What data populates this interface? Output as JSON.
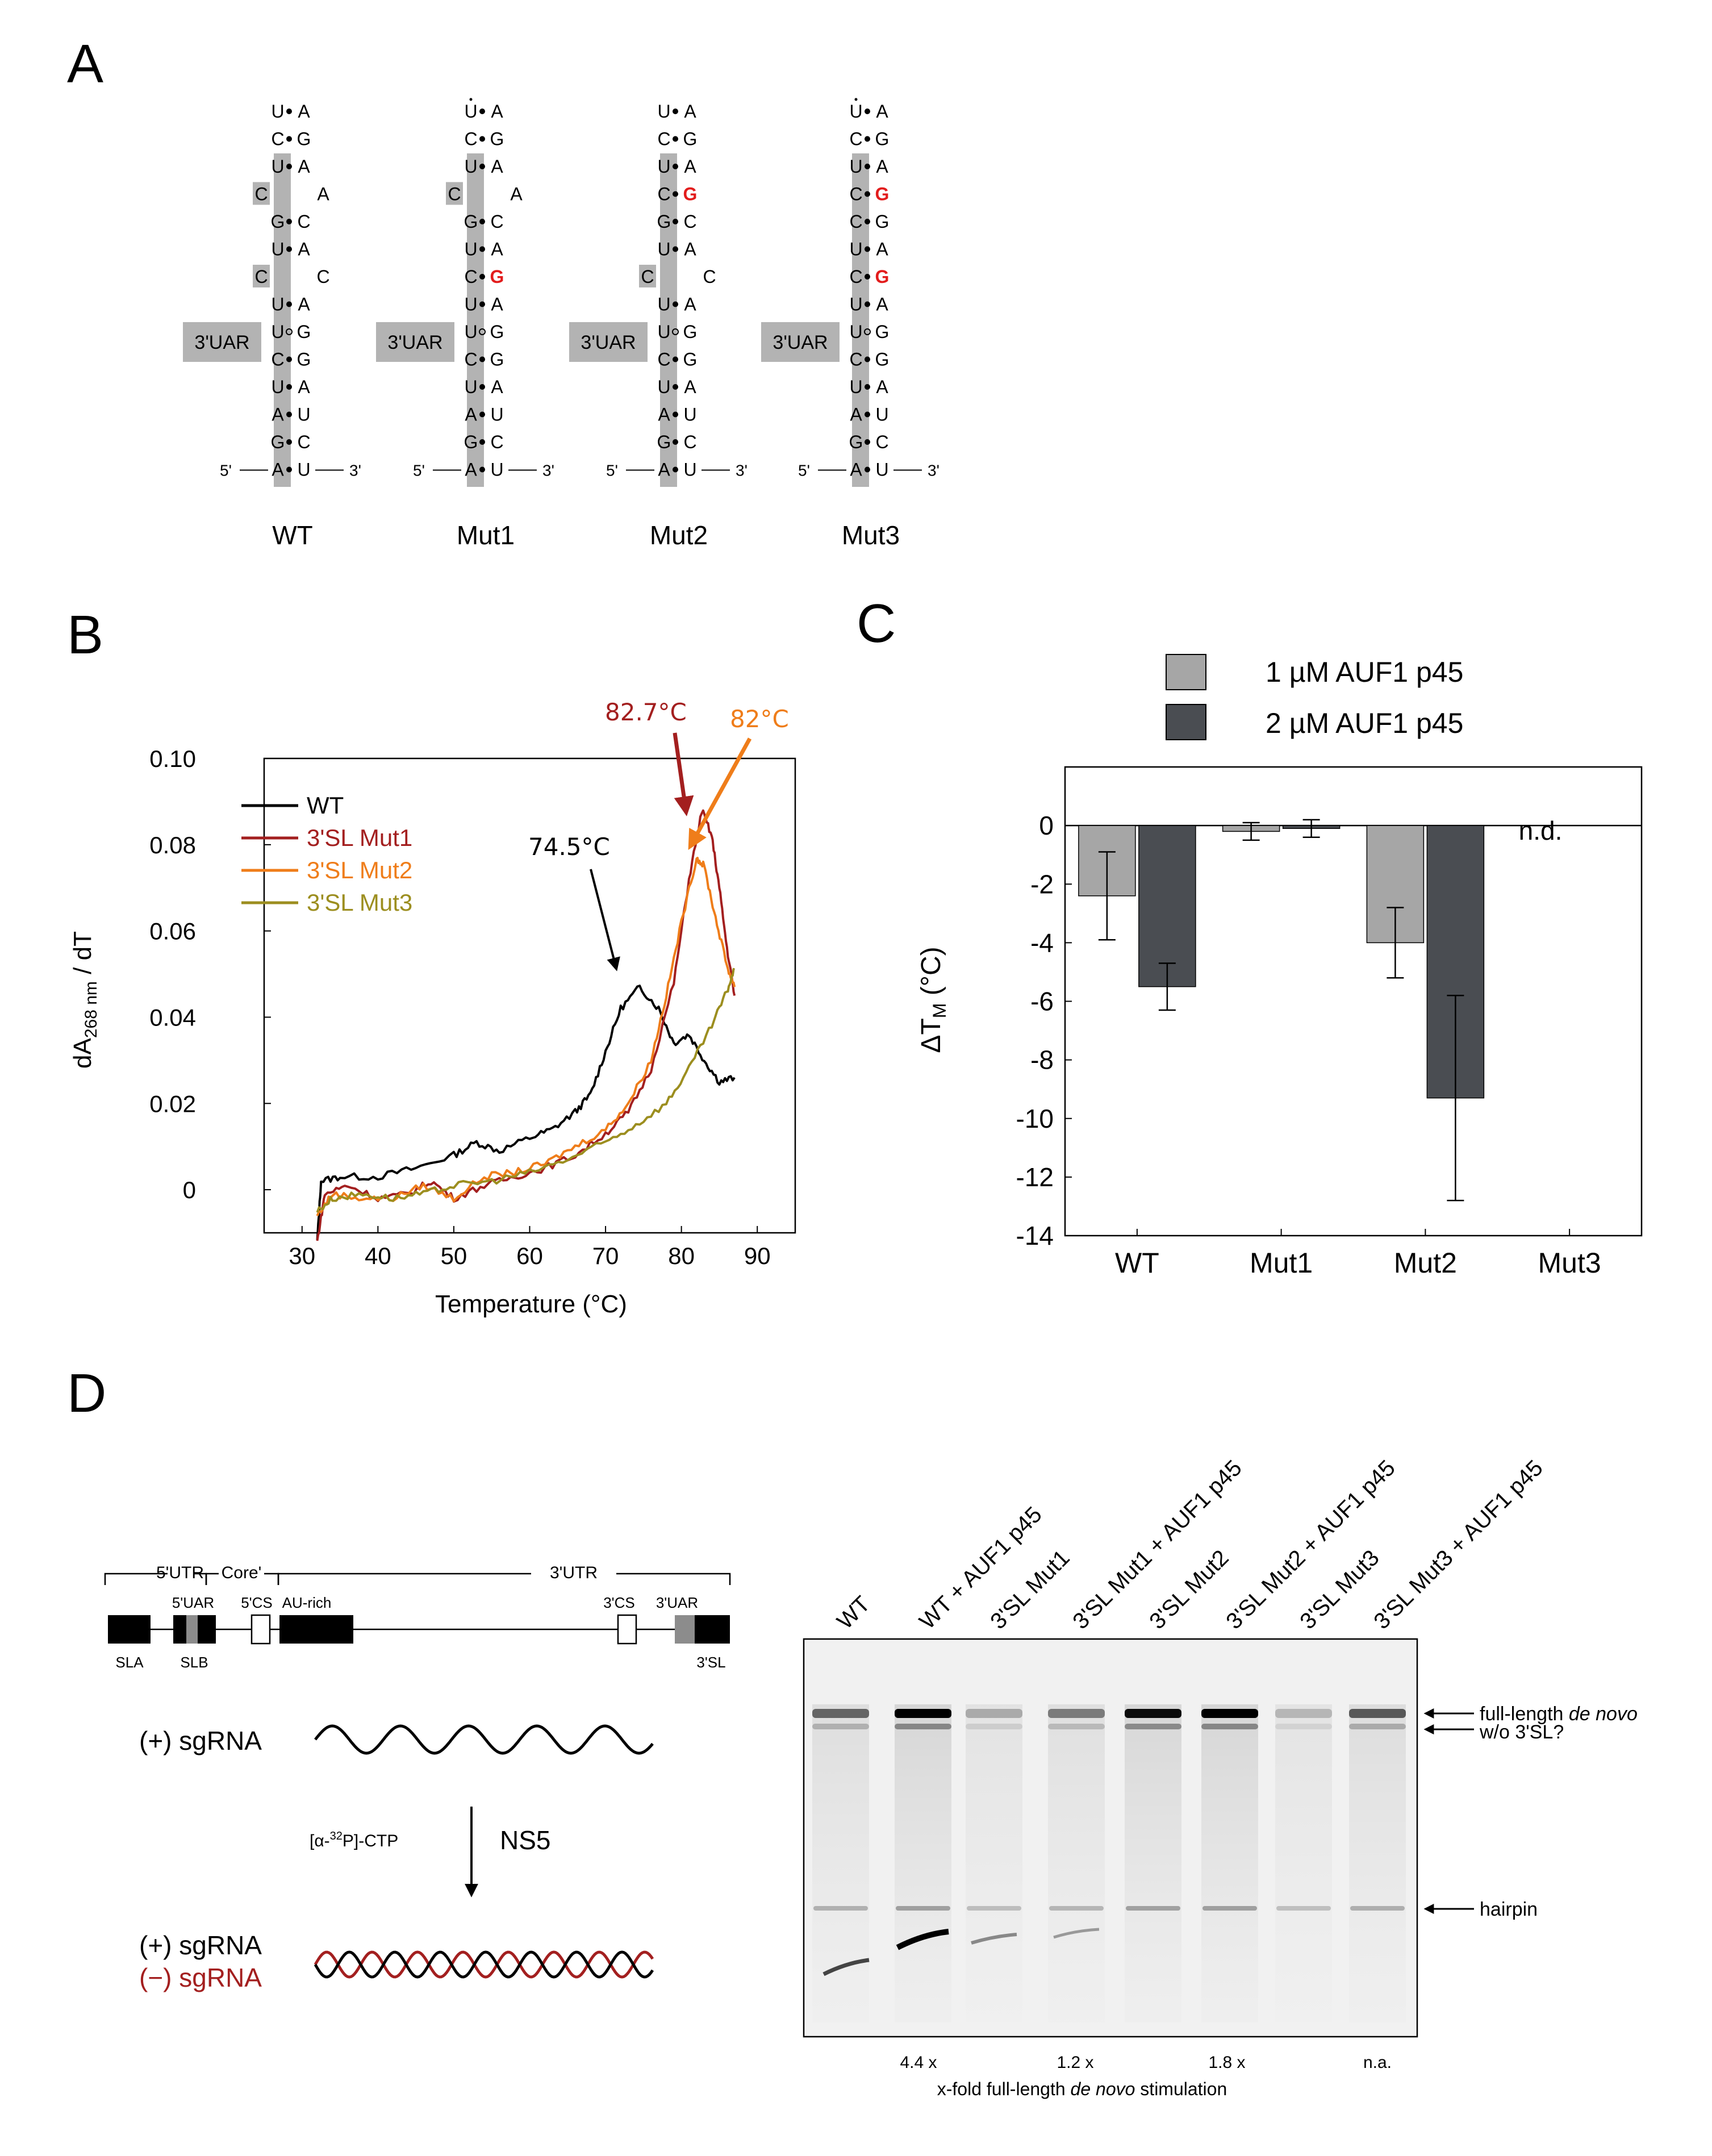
{
  "panels": {
    "A": "A",
    "B": "B",
    "C": "C",
    "D": "D"
  },
  "panel_a": {
    "uar_label": "3'UAR",
    "five_prime": "5'",
    "three_prime": "3'",
    "constructs": [
      {
        "name": "WT"
      },
      {
        "name": "Mut1"
      },
      {
        "name": "Mut2"
      },
      {
        "name": "Mut3"
      }
    ],
    "structures": [
      {
        "rows": [
          {
            "l": "U",
            "b": "•",
            "r": "A"
          },
          {
            "l": "C",
            "b": "•",
            "r": "G"
          },
          {
            "l": "U",
            "b": "•",
            "r": "A"
          },
          {
            "l": "C",
            "b": "",
            "r": "A",
            "bulgeL": true
          },
          {
            "l": "G",
            "b": "•",
            "r": "C"
          },
          {
            "l": "U",
            "b": "•",
            "r": "A"
          },
          {
            "l": "C",
            "b": "",
            "r": "C",
            "bulgeL": true
          },
          {
            "l": "U",
            "b": "•",
            "r": "A"
          },
          {
            "l": "U",
            "b": "∘",
            "r": "G"
          },
          {
            "l": "C",
            "b": "•",
            "r": "G"
          },
          {
            "l": "U",
            "b": "•",
            "r": "A"
          },
          {
            "l": "A",
            "b": "•",
            "r": "U"
          },
          {
            "l": "G",
            "b": "•",
            "r": "C"
          },
          {
            "l": "A",
            "b": "•",
            "r": "U"
          }
        ]
      },
      {
        "rows": [
          {
            "l": "U",
            "b": "•",
            "r": "A",
            "dot": true
          },
          {
            "l": "C",
            "b": "•",
            "r": "G"
          },
          {
            "l": "U",
            "b": "•",
            "r": "A"
          },
          {
            "l": "C",
            "b": "",
            "r": "A",
            "bulgeL": true
          },
          {
            "l": "G",
            "b": "•",
            "r": "C"
          },
          {
            "l": "U",
            "b": "•",
            "r": "A"
          },
          {
            "l": "C",
            "b": "•",
            "r": "G",
            "red": true
          },
          {
            "l": "U",
            "b": "•",
            "r": "A"
          },
          {
            "l": "U",
            "b": "∘",
            "r": "G"
          },
          {
            "l": "C",
            "b": "•",
            "r": "G"
          },
          {
            "l": "U",
            "b": "•",
            "r": "A"
          },
          {
            "l": "A",
            "b": "•",
            "r": "U"
          },
          {
            "l": "G",
            "b": "•",
            "r": "C"
          },
          {
            "l": "A",
            "b": "•",
            "r": "U"
          }
        ]
      },
      {
        "rows": [
          {
            "l": "U",
            "b": "•",
            "r": "A"
          },
          {
            "l": "C",
            "b": "•",
            "r": "G"
          },
          {
            "l": "U",
            "b": "•",
            "r": "A"
          },
          {
            "l": "C",
            "b": "•",
            "r": "G",
            "red": true
          },
          {
            "l": "G",
            "b": "•",
            "r": "C"
          },
          {
            "l": "U",
            "b": "•",
            "r": "A"
          },
          {
            "l": "C",
            "b": "",
            "r": "C",
            "bulgeL": true
          },
          {
            "l": "U",
            "b": "•",
            "r": "A"
          },
          {
            "l": "U",
            "b": "∘",
            "r": "G"
          },
          {
            "l": "C",
            "b": "•",
            "r": "G"
          },
          {
            "l": "U",
            "b": "•",
            "r": "A"
          },
          {
            "l": "A",
            "b": "•",
            "r": "U"
          },
          {
            "l": "G",
            "b": "•",
            "r": "C"
          },
          {
            "l": "A",
            "b": "•",
            "r": "U"
          }
        ]
      },
      {
        "rows": [
          {
            "l": "U",
            "b": "•",
            "r": "A",
            "dot": true
          },
          {
            "l": "C",
            "b": "•",
            "r": "G"
          },
          {
            "l": "U",
            "b": "•",
            "r": "A"
          },
          {
            "l": "C",
            "b": "•",
            "r": "G",
            "red": true
          },
          {
            "l": "C",
            "b": "•",
            "r": "G"
          },
          {
            "l": "U",
            "b": "•",
            "r": "A"
          },
          {
            "l": "C",
            "b": "•",
            "r": "G",
            "red": true
          },
          {
            "l": "U",
            "b": "•",
            "r": "A"
          },
          {
            "l": "U",
            "b": "∘",
            "r": "G"
          },
          {
            "l": "C",
            "b": "•",
            "r": "G"
          },
          {
            "l": "U",
            "b": "•",
            "r": "A"
          },
          {
            "l": "A",
            "b": "•",
            "r": "U"
          },
          {
            "l": "G",
            "b": "•",
            "r": "C"
          },
          {
            "l": "A",
            "b": "•",
            "r": "U"
          }
        ]
      }
    ]
  },
  "chart_data": [
    {
      "panel": "B",
      "type": "line",
      "xlabel": "Temperature (°C)",
      "ylabel_main": "dA",
      "ylabel_sub": "268 nm",
      "ylabel_tail": " / dT",
      "xlim": [
        25,
        95
      ],
      "ylim": [
        -0.01,
        0.1
      ],
      "xticks": [
        30,
        40,
        50,
        60,
        70,
        80,
        90
      ],
      "xtick_labels": [
        "30",
        "40",
        "50",
        "60",
        "70",
        "80",
        "90"
      ],
      "yticks": [
        0,
        0.02,
        0.04,
        0.06,
        0.08,
        0.1
      ],
      "ytick_labels": [
        "0",
        "0.02",
        "0.04",
        "0.06",
        "0.08",
        "0.10"
      ],
      "series": [
        {
          "name": "WT",
          "color": "#000000",
          "points": [
            [
              32,
              -0.012
            ],
            [
              32.5,
              0.002
            ],
            [
              35,
              0.003
            ],
            [
              40,
              0.003
            ],
            [
              45,
              0.005
            ],
            [
              50,
              0.008
            ],
            [
              53,
              0.011
            ],
            [
              56,
              0.009
            ],
            [
              60,
              0.012
            ],
            [
              63,
              0.014
            ],
            [
              66,
              0.018
            ],
            [
              68,
              0.022
            ],
            [
              70,
              0.032
            ],
            [
              72,
              0.042
            ],
            [
              74.5,
              0.047
            ],
            [
              77,
              0.042
            ],
            [
              79,
              0.034
            ],
            [
              81,
              0.036
            ],
            [
              83,
              0.03
            ],
            [
              85,
              0.025
            ],
            [
              87,
              0.026
            ]
          ]
        },
        {
          "name": "3'SL Mut1",
          "color": "#a31f1f",
          "points": [
            [
              32,
              -0.012
            ],
            [
              33,
              -0.001
            ],
            [
              36,
              0.001
            ],
            [
              40,
              -0.002
            ],
            [
              44,
              -0.001
            ],
            [
              47,
              0.002
            ],
            [
              50,
              -0.002
            ],
            [
              54,
              0.001
            ],
            [
              58,
              0.003
            ],
            [
              62,
              0.005
            ],
            [
              66,
              0.008
            ],
            [
              70,
              0.013
            ],
            [
              73,
              0.018
            ],
            [
              76,
              0.028
            ],
            [
              79,
              0.048
            ],
            [
              81,
              0.072
            ],
            [
              82.7,
              0.088
            ],
            [
              84,
              0.082
            ],
            [
              85,
              0.07
            ],
            [
              86,
              0.056
            ],
            [
              87,
              0.045
            ]
          ]
        },
        {
          "name": "3'SL Mut2",
          "color": "#ef7d1a",
          "points": [
            [
              32,
              -0.006
            ],
            [
              34,
              -0.001
            ],
            [
              38,
              -0.002
            ],
            [
              42,
              -0.002
            ],
            [
              46,
              0.001
            ],
            [
              50,
              -0.002
            ],
            [
              54,
              0.003
            ],
            [
              58,
              0.004
            ],
            [
              62,
              0.006
            ],
            [
              66,
              0.01
            ],
            [
              70,
              0.014
            ],
            [
              73,
              0.02
            ],
            [
              76,
              0.03
            ],
            [
              78,
              0.045
            ],
            [
              80,
              0.062
            ],
            [
              82,
              0.077
            ],
            [
              83,
              0.075
            ],
            [
              84.5,
              0.063
            ],
            [
              86,
              0.052
            ],
            [
              87,
              0.047
            ]
          ]
        },
        {
          "name": "3'SL Mut3",
          "color": "#9c8e1f",
          "points": [
            [
              32,
              -0.005
            ],
            [
              34,
              -0.002
            ],
            [
              38,
              -0.001
            ],
            [
              42,
              -0.002
            ],
            [
              46,
              -0.001
            ],
            [
              50,
              0.001
            ],
            [
              55,
              0.002
            ],
            [
              60,
              0.004
            ],
            [
              65,
              0.007
            ],
            [
              70,
              0.011
            ],
            [
              74,
              0.015
            ],
            [
              78,
              0.02
            ],
            [
              81,
              0.028
            ],
            [
              84,
              0.038
            ],
            [
              86,
              0.046
            ],
            [
              87,
              0.051
            ]
          ]
        }
      ],
      "annotations": [
        {
          "text": "74.5°C",
          "color": "#000000"
        },
        {
          "text": "82.7°C",
          "color": "#a31f1f"
        },
        {
          "text": "82°C",
          "color": "#ef7d1a"
        }
      ]
    },
    {
      "panel": "C",
      "type": "bar",
      "ylabel": "ΔT",
      "ylabel_sub": "M",
      "ylabel_tail": " (°C)",
      "categories": [
        "WT",
        "Mut1",
        "Mut2",
        "Mut3"
      ],
      "ylim": [
        -14,
        2
      ],
      "yticks": [
        0,
        -2,
        -4,
        -6,
        -8,
        -10,
        -12,
        -14
      ],
      "ytick_labels": [
        "0",
        "-2",
        "-4",
        "-6",
        "-8",
        "-10",
        "-12",
        "-14"
      ],
      "series": [
        {
          "name": "1 µM AUF1 p45",
          "color": "#a6a6a6",
          "values": [
            -2.4,
            -0.2,
            -4.0,
            null
          ],
          "errors": [
            1.5,
            0.3,
            1.2,
            null
          ]
        },
        {
          "name": "2 µM AUF1 p45",
          "color": "#4a4d52",
          "values": [
            -5.5,
            -0.1,
            -9.3,
            null
          ],
          "errors": [
            0.8,
            0.3,
            3.5,
            null
          ]
        }
      ],
      "annotations": [
        {
          "text": "n.d."
        }
      ]
    }
  ],
  "panel_d": {
    "scheme": {
      "utr5": "5'UTR",
      "core": "Core'",
      "utr3": "3'UTR",
      "uar5": "5'UAR",
      "cs5": "5'CS",
      "aurich": "AU-rich",
      "cs3": "3'CS",
      "uar3": "3'UAR",
      "sla": "SLA",
      "slb": "SLB",
      "sl3": "3'SL"
    },
    "reaction": {
      "plus": "(+) sgRNA",
      "minus": "(−) sgRNA",
      "ctp_pre": "[α-",
      "ctp_sup": "32",
      "ctp_post": "P]-CTP",
      "enzyme": "NS5"
    },
    "gel": {
      "lanes": [
        "WT",
        "WT + AUF1 p45",
        "3'SL Mut1",
        "3'SL Mut1 + AUF1 p45",
        "3'SL Mut2",
        "3'SL Mut2 + AUF1 p45",
        "3'SL Mut3",
        "3'SL Mut3 + AUF1 p45"
      ],
      "label_fl_pre": "full-length ",
      "label_fl_it": "de novo",
      "label_wo": "w/o 3'SL?",
      "label_hairpin": "hairpin",
      "folds": [
        "4.4 x",
        "1.2 x",
        "1.8 x",
        "n.a."
      ],
      "fold_caption_pre": "x-fold full-length ",
      "fold_caption_it": "de novo",
      "fold_caption_post": " stimulation"
    }
  }
}
